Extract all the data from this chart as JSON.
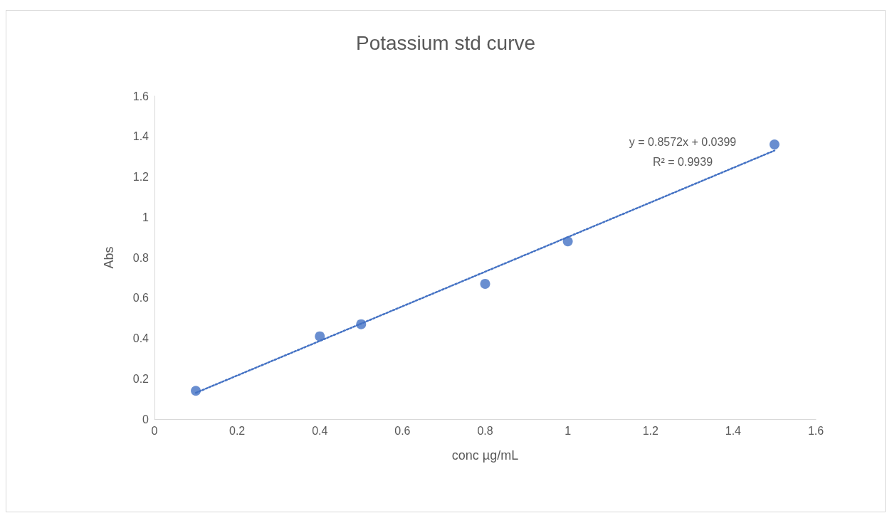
{
  "chart_data": {
    "type": "scatter",
    "title": "Potassium std curve",
    "xlabel": "conc µg/mL",
    "ylabel": "Abs",
    "xlim": [
      0,
      1.6
    ],
    "xticks": [
      0,
      0.2,
      0.4,
      0.6,
      0.8,
      1,
      1.2,
      1.4,
      1.6
    ],
    "ylim": [
      0,
      1.6
    ],
    "yticks": [
      0,
      0.2,
      0.4,
      0.6,
      0.8,
      1,
      1.2,
      1.4,
      1.6
    ],
    "grid": false,
    "marker": "circle",
    "series": [
      {
        "color": "#4472c4",
        "x": [
          0.1,
          0.4,
          0.5,
          0.8,
          1,
          1.5
        ],
        "values": [
          0.14,
          0.41,
          0.47,
          0.67,
          0.88,
          1.36
        ]
      },
      {
        "type": "line",
        "color": "#4472c4",
        "x": [
          0.1,
          1.5
        ],
        "values": [
          0.13,
          1.33
        ],
        "line_style": "dotted",
        "marker": "none"
      }
    ],
    "annotations": [
      "y = 0.8572x + 0.0399",
      "R² = 0.9939"
    ]
  }
}
